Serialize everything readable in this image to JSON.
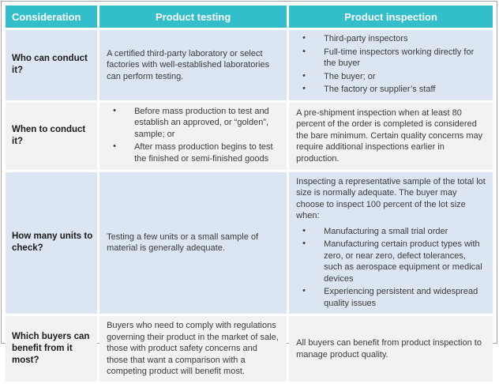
{
  "colors": {
    "accent_teal": "#32BFCB",
    "band_blue": "#DCE6F2",
    "band_gray": "#F2F2F2",
    "frame_gray": "#A3A3A3",
    "header_text": "#FFFFFF",
    "body_text": "#3B3B3B",
    "rowhead_text": "#1A1A1A"
  },
  "bullet_glyph": "•",
  "table": {
    "headers": [
      "Consideration",
      "Product testing",
      "Product inspection"
    ],
    "rows": [
      {
        "consideration": "Who can conduct it?",
        "testing_text": "A certified third-party laboratory or select factories with well-established laboratories can perform testing.",
        "inspection_bullets": [
          "Third-party inspectors",
          "Full-time inspectors working directly for the buyer",
          "The buyer; or",
          "The factory or supplier’s staff"
        ]
      },
      {
        "consideration": "When to conduct it?",
        "testing_bullets": [
          "Before mass production to test and establish an approved, or “golden”, sample; or",
          "After mass production begins to test the finished or semi-finished goods"
        ],
        "inspection_text": "A pre-shipment inspection when at least 80 percent of the order is completed is considered the bare minimum. Certain quality concerns may require additional inspections earlier in production."
      },
      {
        "consideration": "How many units to check?",
        "testing_text": "Testing a few units or a small sample of material is generally adequate.",
        "inspection_intro": "Inspecting a representative sample of the total lot size is normally adequate. The buyer may choose to inspect 100 percent of the lot size when:",
        "inspection_bullets": [
          "Manufacturing a small trial order",
          "Manufacturing certain product types with zero, or near zero, defect tolerances, such as aerospace equipment or medical devices",
          "Experiencing persistent and widespread quality issues"
        ]
      },
      {
        "consideration": "Which buyers can benefit from it most?",
        "testing_text": "Buyers who need to comply with regulations governing their product in the market of sale, those with product safety concerns and those that want a comparison with a competing product will benefit most.",
        "inspection_text": "All buyers can benefit from product inspection to manage product quality."
      }
    ]
  }
}
